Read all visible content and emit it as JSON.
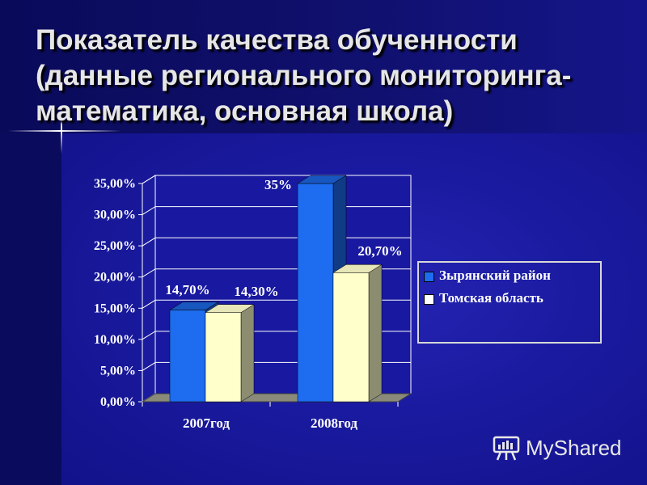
{
  "slide": {
    "title": "Показатель качества обученности (данные регионального мониторинга- математика, основная школа)"
  },
  "chart_data": {
    "type": "bar",
    "categories": [
      "2007год",
      "2008год"
    ],
    "series": [
      {
        "name": "Зырянский район",
        "values": [
          14.7,
          35
        ],
        "labels": [
          "14,70%",
          "35%"
        ],
        "color": "#1e6cf0"
      },
      {
        "name": "Томская область",
        "values": [
          14.3,
          20.7
        ],
        "labels": [
          "14,30%",
          "20,70%"
        ],
        "color": "#ffffcc"
      }
    ],
    "ylim": [
      0,
      35
    ],
    "yticks": [
      "0,00%",
      "5,00%",
      "10,00%",
      "15,00%",
      "20,00%",
      "25,00%",
      "30,00%",
      "35,00%"
    ],
    "grid": true,
    "legend_position": "right",
    "bar_style": "3d"
  },
  "watermark": {
    "text": "MyShared",
    "icon": "presentation-board-icon"
  }
}
